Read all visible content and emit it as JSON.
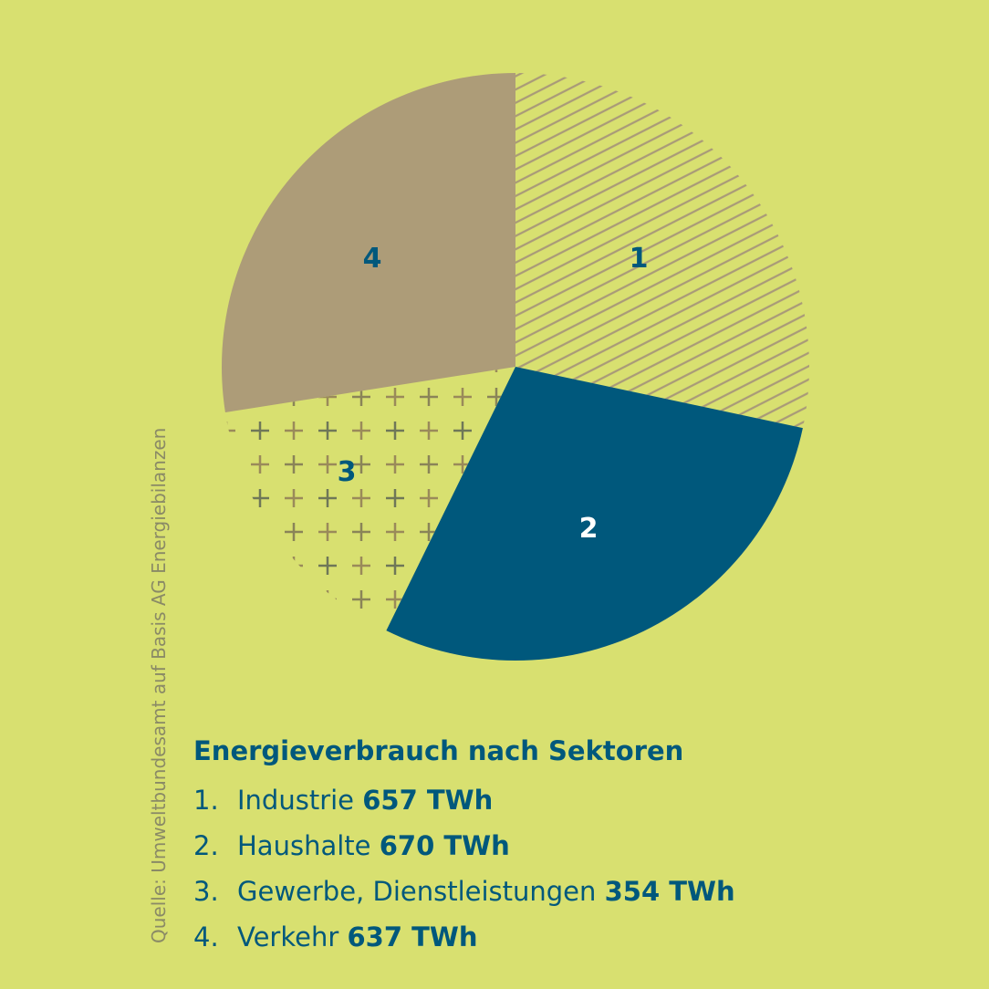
{
  "chart_data": {
    "type": "pie",
    "title": "Energieverbrauch nach Sektoren",
    "unit": "TWh",
    "slices": [
      {
        "label": "1",
        "name": "Industrie",
        "value": 657,
        "value_text": "657 TWh",
        "fill": "hatch",
        "color": "#a99a78"
      },
      {
        "label": "2",
        "name": "Haushalte",
        "value": 670,
        "value_text": "670 TWh",
        "fill": "solid",
        "color": "#00587c"
      },
      {
        "label": "3",
        "name": "Gewerbe, Dienstleistungen",
        "value": 354,
        "value_text": "354 TWh",
        "fill": "cross",
        "color": "#9a8a5a"
      },
      {
        "label": "4",
        "name": "Verkehr",
        "value": 637,
        "value_text": "637 TWh",
        "fill": "solid",
        "color": "#ad9c78"
      }
    ],
    "start": "top",
    "direction": "clockwise"
  },
  "legend": {
    "numbers": [
      "1.",
      "2.",
      "3.",
      "4."
    ]
  },
  "source": "Quelle: Umweltbundesamt auf Basis AG Energiebilanzen",
  "colors": {
    "background": "#d8e070",
    "text": "#00587c"
  }
}
